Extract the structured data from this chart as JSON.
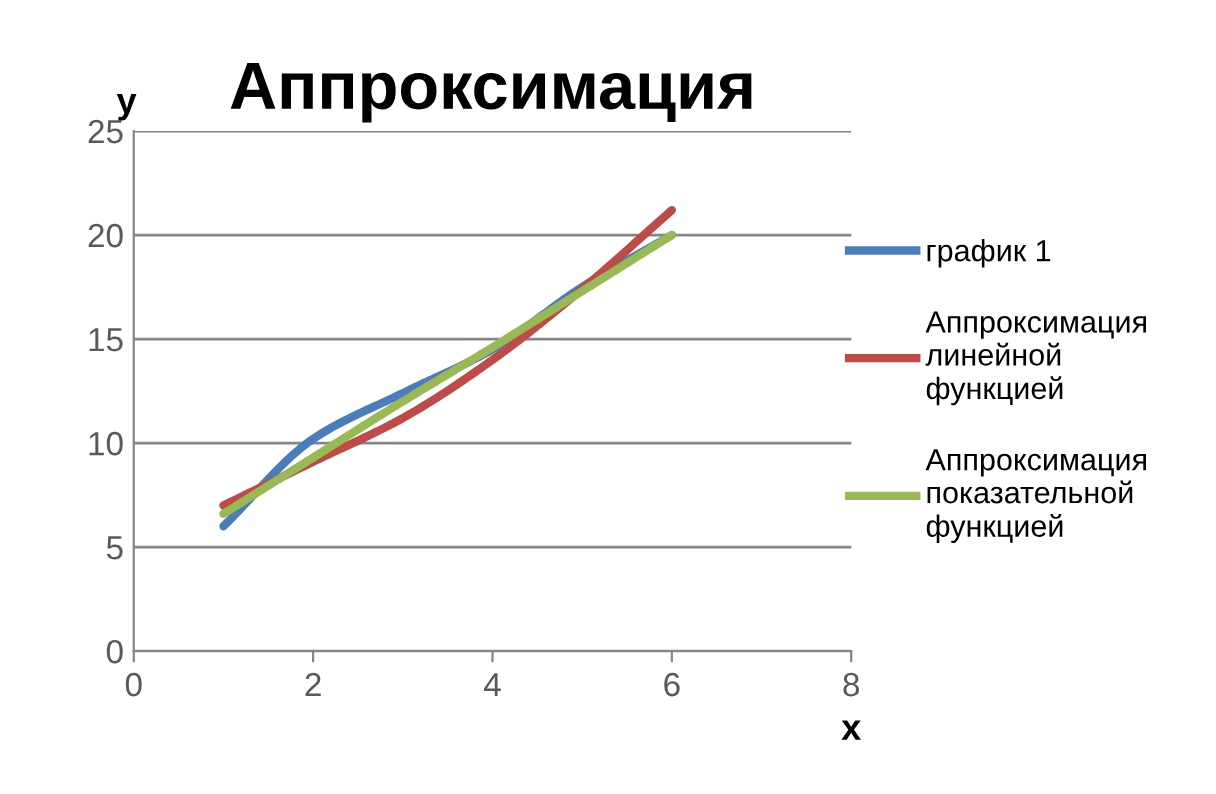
{
  "chart_data": {
    "type": "line",
    "title": "Аппроксимация",
    "xlabel": "x",
    "ylabel": "y",
    "x": [
      1,
      2,
      3,
      4,
      5,
      6
    ],
    "series": [
      {
        "name": "график 1",
        "color": "#4a7ebb",
        "values": [
          6,
          10.2,
          12.4,
          14.5,
          17.5,
          20
        ]
      },
      {
        "name": "Аппроксимация линейной функцией",
        "color": "#be4b48",
        "values": [
          7,
          9.1,
          11.2,
          14,
          17.4,
          21.2
        ]
      },
      {
        "name": "Аппроксимация показательной функцией",
        "color": "#98b954",
        "values": [
          6.6,
          9.3,
          12,
          14.6,
          17.3,
          20
        ]
      }
    ],
    "xlim": [
      0,
      8
    ],
    "xticks": [
      0,
      2,
      4,
      6,
      8
    ],
    "ylim": [
      0,
      25
    ],
    "yticks": [
      0,
      5,
      10,
      15,
      20,
      25
    ],
    "grid": "y",
    "legend": "right",
    "marker": "none",
    "line_style": "solid"
  }
}
